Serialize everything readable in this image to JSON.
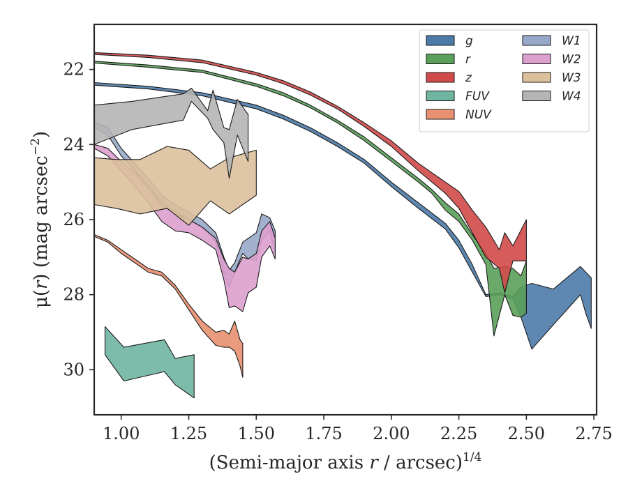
{
  "chart_data": {
    "type": "area",
    "xlabel": "(Semi-major axis r / arcsec)^{1/4}",
    "xlabel_parts": {
      "main": "(Semi-major axis ",
      "var": "r",
      "rest": " / arcsec)",
      "sup": "1/4"
    },
    "ylabel": "μ(r) (mag arcsec^{-2})",
    "ylabel_parts": {
      "mu": "μ(",
      "var": "r",
      "mid": ") (mag arcsec",
      "sup": "−2",
      "end": ")"
    },
    "xlim": [
      0.9,
      2.76
    ],
    "ylim": [
      31.2,
      20.8
    ],
    "y_inverted": true,
    "xticks": [
      1.0,
      1.25,
      1.5,
      1.75,
      2.0,
      2.25,
      2.5,
      2.75
    ],
    "xtick_labels": [
      "1.00",
      "1.25",
      "1.50",
      "1.75",
      "2.00",
      "2.25",
      "2.50",
      "2.75"
    ],
    "yticks": [
      22,
      24,
      26,
      28,
      30
    ],
    "ytick_labels": [
      "22",
      "24",
      "26",
      "28",
      "30"
    ],
    "grid": false,
    "legend_position": "top-right",
    "legend_columns": 2,
    "series": [
      {
        "name": "g",
        "color": "#4c7ba8",
        "x": [
          0.9,
          1.1,
          1.3,
          1.5,
          1.6,
          1.7,
          1.8,
          1.9,
          2.0,
          2.1,
          2.2,
          2.25,
          2.3,
          2.35,
          2.4,
          2.45,
          2.48,
          2.52,
          2.6,
          2.7,
          2.72,
          2.74
        ],
        "lo": [
          22.35,
          22.45,
          22.62,
          22.95,
          23.22,
          23.55,
          23.95,
          24.4,
          25.0,
          25.55,
          26.1,
          26.55,
          27.2,
          28.0,
          27.95,
          28.05,
          27.8,
          27.7,
          27.85,
          27.25,
          27.4,
          27.55
        ],
        "hi": [
          22.42,
          22.52,
          22.7,
          23.05,
          23.32,
          23.65,
          24.05,
          24.5,
          25.12,
          25.7,
          26.25,
          26.75,
          27.4,
          28.05,
          28.0,
          28.1,
          28.6,
          29.45,
          28.8,
          28.0,
          28.5,
          28.9
        ]
      },
      {
        "name": "r",
        "color": "#5aa05a",
        "x": [
          0.9,
          1.1,
          1.3,
          1.5,
          1.6,
          1.7,
          1.8,
          1.9,
          2.0,
          2.1,
          2.15,
          2.2,
          2.25,
          2.3,
          2.35,
          2.38,
          2.42,
          2.45,
          2.48,
          2.5
        ],
        "lo": [
          21.78,
          21.88,
          22.02,
          22.38,
          22.62,
          22.95,
          23.35,
          23.8,
          24.35,
          24.9,
          25.2,
          25.55,
          25.85,
          26.4,
          26.9,
          27.3,
          27.25,
          27.3,
          27.5,
          27.1
        ],
        "hi": [
          21.83,
          21.94,
          22.08,
          22.45,
          22.7,
          23.02,
          23.42,
          23.9,
          24.45,
          25.0,
          25.3,
          25.75,
          26.05,
          26.55,
          27.2,
          29.1,
          28.0,
          28.55,
          28.6,
          28.5
        ]
      },
      {
        "name": "z",
        "color": "#d14a4a",
        "x": [
          0.9,
          1.1,
          1.3,
          1.5,
          1.6,
          1.7,
          1.8,
          1.9,
          2.0,
          2.1,
          2.2,
          2.25,
          2.3,
          2.35,
          2.4,
          2.42,
          2.45,
          2.5
        ],
        "lo": [
          21.55,
          21.62,
          21.75,
          22.08,
          22.3,
          22.6,
          22.98,
          23.42,
          23.9,
          24.5,
          25.0,
          25.25,
          25.75,
          26.2,
          26.8,
          26.35,
          26.7,
          26.0
        ],
        "hi": [
          21.6,
          21.68,
          21.82,
          22.15,
          22.38,
          22.68,
          23.05,
          23.52,
          24.05,
          24.7,
          25.3,
          25.7,
          26.35,
          27.0,
          27.3,
          27.95,
          27.1,
          27.1
        ]
      },
      {
        "name": "FUV",
        "color": "#6fb5a2",
        "x": [
          0.94,
          1.01,
          1.16,
          1.2,
          1.27
        ],
        "lo": [
          28.85,
          29.4,
          29.2,
          29.7,
          29.6
        ],
        "hi": [
          29.6,
          30.3,
          30.05,
          30.4,
          30.75
        ]
      },
      {
        "name": "NUV",
        "color": "#e8906f",
        "x": [
          0.9,
          0.95,
          1.0,
          1.05,
          1.1,
          1.15,
          1.2,
          1.25,
          1.3,
          1.35,
          1.38,
          1.4,
          1.42,
          1.44,
          1.45
        ],
        "lo": [
          26.4,
          26.55,
          26.8,
          27.05,
          27.3,
          27.4,
          27.75,
          28.25,
          28.7,
          29.0,
          28.95,
          29.05,
          28.7,
          29.2,
          29.3
        ],
        "hi": [
          26.45,
          26.6,
          26.9,
          27.15,
          27.4,
          27.5,
          27.85,
          28.4,
          28.95,
          29.35,
          29.4,
          29.4,
          29.5,
          29.9,
          30.2
        ]
      },
      {
        "name": "W1",
        "color": "#98a8c8",
        "x": [
          0.9,
          0.95,
          1.0,
          1.05,
          1.1,
          1.15,
          1.2,
          1.25,
          1.3,
          1.35,
          1.38,
          1.4,
          1.42,
          1.45,
          1.47,
          1.5,
          1.52,
          1.55,
          1.57
        ],
        "lo": [
          23.4,
          23.55,
          24.1,
          24.5,
          24.9,
          25.35,
          25.6,
          25.8,
          26.0,
          26.35,
          27.0,
          27.35,
          27.15,
          26.6,
          26.5,
          26.35,
          25.85,
          25.95,
          26.3
        ],
        "hi": [
          23.55,
          23.75,
          24.3,
          24.7,
          25.1,
          25.55,
          25.8,
          26.0,
          26.2,
          26.6,
          27.4,
          27.8,
          27.4,
          26.9,
          27.05,
          27.1,
          26.55,
          26.3,
          26.9
        ]
      },
      {
        "name": "W2",
        "color": "#dca0ce",
        "x": [
          0.9,
          0.95,
          1.0,
          1.05,
          1.1,
          1.15,
          1.2,
          1.25,
          1.3,
          1.35,
          1.38,
          1.4,
          1.42,
          1.45,
          1.47,
          1.5,
          1.52,
          1.55,
          1.57
        ],
        "lo": [
          24.0,
          24.1,
          24.45,
          24.75,
          25.15,
          25.6,
          25.85,
          26.0,
          26.2,
          26.5,
          27.05,
          27.3,
          27.4,
          27.0,
          27.05,
          26.9,
          26.3,
          26.05,
          26.5
        ],
        "hi": [
          24.1,
          24.3,
          24.7,
          25.1,
          25.55,
          26.05,
          26.3,
          26.35,
          26.55,
          26.8,
          27.6,
          28.35,
          28.3,
          28.45,
          27.95,
          27.8,
          27.0,
          26.7,
          27.05
        ]
      },
      {
        "name": "W3",
        "color": "#dcc09c",
        "x": [
          0.9,
          0.98,
          1.07,
          1.17,
          1.25,
          1.33,
          1.4,
          1.5
        ],
        "lo": [
          24.35,
          24.4,
          24.4,
          24.05,
          24.15,
          24.65,
          24.35,
          24.15
        ],
        "hi": [
          25.6,
          25.7,
          25.85,
          25.7,
          26.15,
          25.5,
          25.85,
          25.35
        ]
      },
      {
        "name": "W4",
        "color": "#b5b5b5",
        "x": [
          0.9,
          1.04,
          1.23,
          1.26,
          1.32,
          1.34,
          1.38,
          1.4,
          1.43,
          1.47
        ],
        "lo": [
          22.95,
          22.85,
          22.65,
          22.5,
          23.1,
          22.55,
          23.55,
          23.6,
          22.8,
          23.2
        ],
        "hi": [
          24.0,
          23.6,
          23.35,
          22.85,
          23.3,
          23.6,
          23.95,
          24.9,
          23.75,
          24.45
        ]
      }
    ]
  }
}
